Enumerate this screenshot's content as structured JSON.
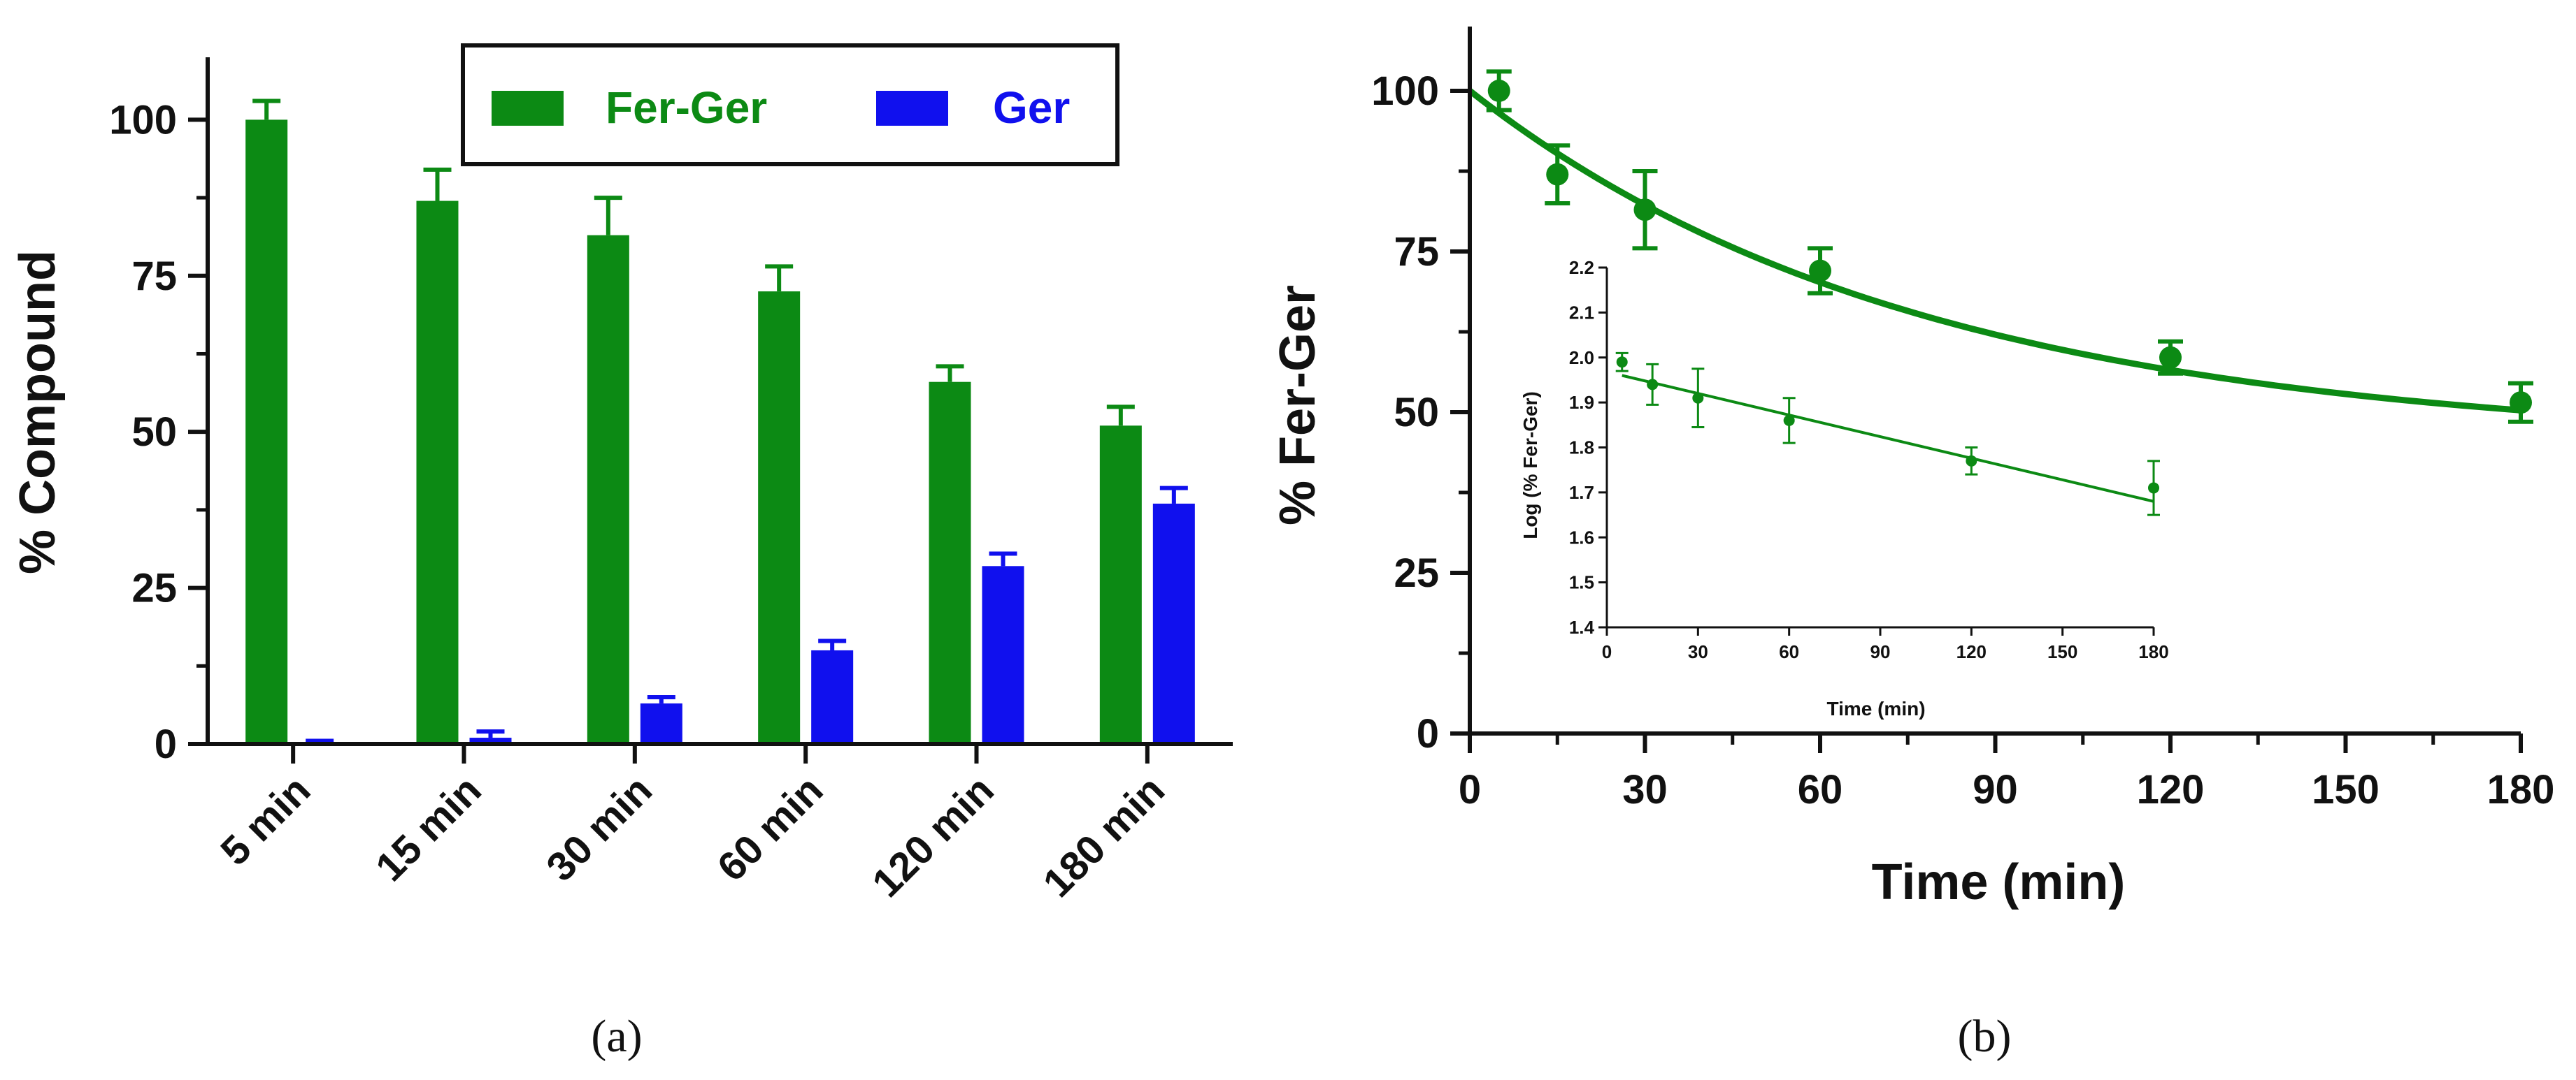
{
  "colors": {
    "fer_ger": "#0c8a14",
    "ger": "#1010ee",
    "axis": "#111111"
  },
  "panel_labels": {
    "a": "(a)",
    "b": "(b)"
  },
  "chart_data": [
    {
      "id": "a",
      "type": "bar",
      "title": "",
      "xlabel": "",
      "ylabel": "% Compound",
      "ylim": [
        0,
        110
      ],
      "yticks": [
        "0",
        "25",
        "50",
        "75",
        "100"
      ],
      "categories": [
        "5 min",
        "15 min",
        "30 min",
        "60 min",
        "120 min",
        "180 min"
      ],
      "legend_position": "top-right",
      "legend": [
        {
          "name": "Fer-Ger",
          "color": "#0c8a14"
        },
        {
          "name": "Ger",
          "color": "#1010ee"
        }
      ],
      "series": [
        {
          "name": "Fer-Ger",
          "color": "#0c8a14",
          "values": [
            100,
            87,
            81.5,
            72.5,
            58,
            51
          ],
          "errors": [
            3,
            5,
            6,
            4,
            2.5,
            3
          ]
        },
        {
          "name": "Ger",
          "color": "#1010ee",
          "values": [
            0,
            1,
            6.5,
            15,
            28.5,
            38.5
          ],
          "errors": [
            0.5,
            1,
            1,
            1.5,
            2,
            2.5
          ]
        }
      ]
    },
    {
      "id": "b",
      "type": "scatter",
      "title": "",
      "xlabel": "Time (min)",
      "ylabel": "% Fer-Ger",
      "xlim": [
        0,
        180
      ],
      "ylim": [
        0,
        110
      ],
      "xticks": [
        "0",
        "30",
        "60",
        "90",
        "120",
        "150",
        "180"
      ],
      "yticks": [
        "0",
        "25",
        "50",
        "75",
        "100"
      ],
      "series": [
        {
          "name": "Fer-Ger",
          "x": [
            5,
            15,
            30,
            60,
            120,
            180
          ],
          "y": [
            100,
            87,
            81.5,
            72,
            58.5,
            51.5
          ],
          "errors": [
            3,
            4.5,
            6,
            3.5,
            2.5,
            3
          ]
        }
      ],
      "fit": {
        "type": "exponential decay",
        "x": [
          0,
          180
        ],
        "plateau": 45,
        "top": 100,
        "k": 0.013
      },
      "inset": {
        "type": "scatter",
        "xlabel": "Time (min)",
        "ylabel": "Log (% Fer-Ger)",
        "xlim": [
          0,
          180
        ],
        "ylim": [
          1.4,
          2.2
        ],
        "xticks": [
          "0",
          "30",
          "60",
          "90",
          "120",
          "150",
          "180"
        ],
        "yticks": [
          "1.4",
          "1.5",
          "1.6",
          "1.7",
          "1.8",
          "1.9",
          "2.0",
          "2.1",
          "2.2"
        ],
        "x": [
          5,
          15,
          30,
          60,
          120,
          180
        ],
        "y": [
          1.99,
          1.94,
          1.91,
          1.86,
          1.77,
          1.71
        ],
        "errors": [
          0.02,
          0.045,
          0.065,
          0.05,
          0.03,
          0.06
        ],
        "fit": {
          "type": "linear",
          "x": [
            5,
            180
          ],
          "y": [
            1.96,
            1.68
          ]
        }
      }
    }
  ]
}
